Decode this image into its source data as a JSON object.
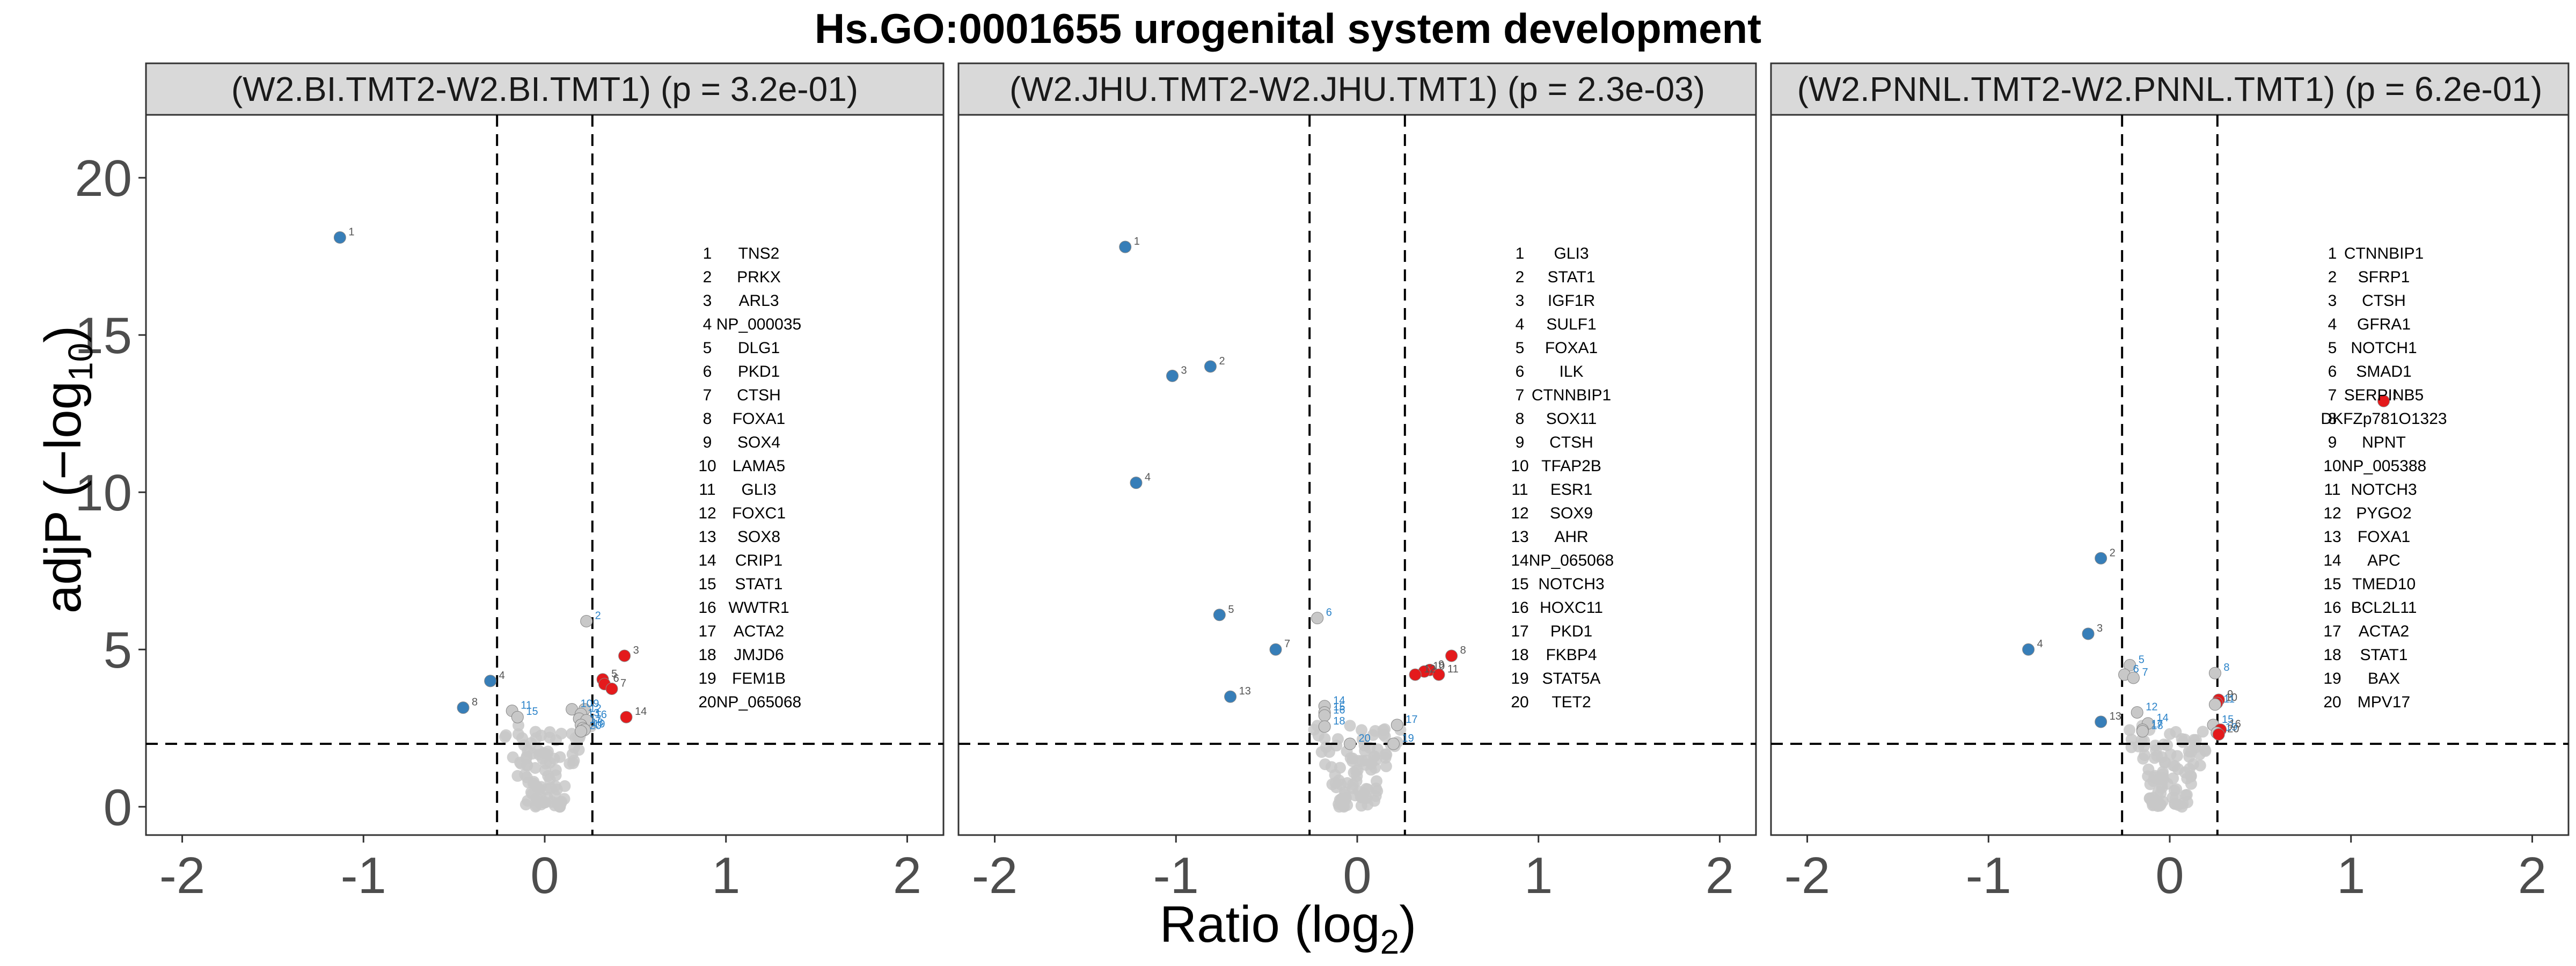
{
  "colors": {
    "up": "#E41A1C",
    "down": "#377EB8",
    "ns": "#C8C8C8",
    "strip_bg": "#D9D9D9"
  },
  "chart_data": {
    "type": "scatter",
    "title": "Hs.GO:0001655 urogenital system development",
    "xlabel": "Ratio (log2)",
    "ylabel": "adjP (−log10)",
    "xlim": [
      -2.2,
      2.2
    ],
    "ylim": [
      -0.9,
      22
    ],
    "x_ticks": [
      -2,
      -1,
      0,
      1,
      2
    ],
    "y_ticks": [
      0,
      5,
      10,
      15,
      20
    ],
    "ratio_cutoffs": [
      -0.263,
      0.263
    ],
    "p_cutoff": 2,
    "grid": false,
    "panels": [
      {
        "strip": "(W2.BI.TMT2-W2.BI.TMT1) (p = 3.2e-01)",
        "legend": [
          "TNS2",
          "PRKX",
          "ARL3",
          "NP_000035",
          "DLG1",
          "PKD1",
          "CTSH",
          "FOXA1",
          "SOX4",
          "LAMA5",
          "GLI3",
          "FOXC1",
          "SOX8",
          "CRIP1",
          "STAT1",
          "WWTR1",
          "ACTA2",
          "JMJD6",
          "FEM1B",
          "NP_065068"
        ],
        "points": [
          {
            "id": "1",
            "x": -1.13,
            "y": 18.1,
            "group": "down"
          },
          {
            "id": "2",
            "x": 0.23,
            "y": 5.9,
            "group": "ns"
          },
          {
            "id": "3",
            "x": 0.44,
            "y": 4.8,
            "group": "up"
          },
          {
            "id": "4",
            "x": -0.3,
            "y": 4.0,
            "group": "down"
          },
          {
            "id": "5",
            "x": 0.32,
            "y": 4.05,
            "group": "up"
          },
          {
            "id": "6",
            "x": 0.33,
            "y": 3.9,
            "group": "up"
          },
          {
            "id": "7",
            "x": 0.37,
            "y": 3.75,
            "group": "up"
          },
          {
            "id": "8",
            "x": -0.45,
            "y": 3.15,
            "group": "down"
          },
          {
            "id": "9",
            "x": 0.22,
            "y": 3.1,
            "group": "ns"
          },
          {
            "id": "10",
            "x": 0.15,
            "y": 3.1,
            "group": "ns"
          },
          {
            "id": "11",
            "x": -0.18,
            "y": 3.05,
            "group": "ns"
          },
          {
            "id": "12",
            "x": 0.2,
            "y": 2.95,
            "group": "ns"
          },
          {
            "id": "13",
            "x": 0.19,
            "y": 2.8,
            "group": "ns"
          },
          {
            "id": "14",
            "x": 0.45,
            "y": 2.85,
            "group": "up"
          },
          {
            "id": "15",
            "x": -0.15,
            "y": 2.85,
            "group": "ns"
          },
          {
            "id": "16",
            "x": 0.23,
            "y": 2.75,
            "group": "ns"
          },
          {
            "id": "17",
            "x": 0.2,
            "y": 2.6,
            "group": "ns"
          },
          {
            "id": "18",
            "x": 0.21,
            "y": 2.5,
            "group": "ns"
          },
          {
            "id": "19",
            "x": 0.22,
            "y": 2.45,
            "group": "ns"
          },
          {
            "id": "20",
            "x": 0.2,
            "y": 2.4,
            "group": "ns"
          }
        ]
      },
      {
        "strip": "(W2.JHU.TMT2-W2.JHU.TMT1) (p = 2.3e-03)",
        "legend": [
          "GLI3",
          "STAT1",
          "IGF1R",
          "SULF1",
          "FOXA1",
          "ILK",
          "CTNNBIP1",
          "SOX11",
          "CTSH",
          "TFAP2B",
          "ESR1",
          "SOX9",
          "AHR",
          "NP_065068",
          "NOTCH3",
          "HOXC11",
          "PKD1",
          "FKBP4",
          "STAT5A",
          "TET2"
        ],
        "points": [
          {
            "id": "1",
            "x": -1.28,
            "y": 17.8,
            "group": "down"
          },
          {
            "id": "2",
            "x": -0.81,
            "y": 14.0,
            "group": "down"
          },
          {
            "id": "3",
            "x": -1.02,
            "y": 13.7,
            "group": "down"
          },
          {
            "id": "4",
            "x": -1.22,
            "y": 10.3,
            "group": "down"
          },
          {
            "id": "5",
            "x": -0.76,
            "y": 6.1,
            "group": "down"
          },
          {
            "id": "6",
            "x": -0.22,
            "y": 6.0,
            "group": "ns"
          },
          {
            "id": "7",
            "x": -0.45,
            "y": 5.0,
            "group": "down"
          },
          {
            "id": "8",
            "x": 0.52,
            "y": 4.8,
            "group": "up"
          },
          {
            "id": "9",
            "x": 0.4,
            "y": 4.35,
            "group": "up"
          },
          {
            "id": "10",
            "x": 0.37,
            "y": 4.3,
            "group": "up"
          },
          {
            "id": "11",
            "x": 0.45,
            "y": 4.2,
            "group": "up"
          },
          {
            "id": "12",
            "x": 0.32,
            "y": 4.2,
            "group": "up"
          },
          {
            "id": "13",
            "x": -0.7,
            "y": 3.5,
            "group": "down"
          },
          {
            "id": "14",
            "x": -0.18,
            "y": 3.2,
            "group": "ns"
          },
          {
            "id": "15",
            "x": -0.18,
            "y": 3.0,
            "group": "ns"
          },
          {
            "id": "16",
            "x": -0.18,
            "y": 2.9,
            "group": "ns"
          },
          {
            "id": "17",
            "x": 0.22,
            "y": 2.6,
            "group": "ns"
          },
          {
            "id": "18",
            "x": -0.18,
            "y": 2.55,
            "group": "ns"
          },
          {
            "id": "19",
            "x": 0.2,
            "y": 2.0,
            "group": "ns"
          },
          {
            "id": "20",
            "x": -0.04,
            "y": 2.0,
            "group": "ns"
          }
        ]
      },
      {
        "strip": "(W2.PNNL.TMT2-W2.PNNL.TMT1) (p = 6.2e-01)",
        "legend": [
          "CTNNBIP1",
          "SFRP1",
          "CTSH",
          "GFRA1",
          "NOTCH1",
          "SMAD1",
          "SERPINB5",
          "DKFZp781O1323",
          "NPNT",
          "NP_005388",
          "NOTCH3",
          "PYGO2",
          "FOXA1",
          "APC",
          "TMED10",
          "BCL2L11",
          "ACTA2",
          "STAT1",
          "BAX",
          "MPV17"
        ],
        "points": [
          {
            "id": "1",
            "x": 1.18,
            "y": 12.9,
            "group": "up"
          },
          {
            "id": "2",
            "x": -0.38,
            "y": 7.9,
            "group": "down"
          },
          {
            "id": "3",
            "x": -0.45,
            "y": 5.5,
            "group": "down"
          },
          {
            "id": "4",
            "x": -0.78,
            "y": 5.0,
            "group": "down"
          },
          {
            "id": "5",
            "x": -0.22,
            "y": 4.5,
            "group": "ns"
          },
          {
            "id": "6",
            "x": -0.25,
            "y": 4.2,
            "group": "ns"
          },
          {
            "id": "7",
            "x": -0.2,
            "y": 4.1,
            "group": "ns"
          },
          {
            "id": "8",
            "x": 0.25,
            "y": 4.25,
            "group": "ns"
          },
          {
            "id": "9",
            "x": 0.27,
            "y": 3.4,
            "group": "up"
          },
          {
            "id": "10",
            "x": 0.26,
            "y": 3.3,
            "group": "up"
          },
          {
            "id": "11",
            "x": 0.25,
            "y": 3.25,
            "group": "ns"
          },
          {
            "id": "12",
            "x": -0.18,
            "y": 3.0,
            "group": "ns"
          },
          {
            "id": "13",
            "x": -0.38,
            "y": 2.7,
            "group": "down"
          },
          {
            "id": "14",
            "x": -0.12,
            "y": 2.65,
            "group": "ns"
          },
          {
            "id": "15",
            "x": 0.24,
            "y": 2.6,
            "group": "ns"
          },
          {
            "id": "16",
            "x": 0.28,
            "y": 2.45,
            "group": "up"
          },
          {
            "id": "17",
            "x": -0.15,
            "y": 2.45,
            "group": "ns"
          },
          {
            "id": "18",
            "x": -0.15,
            "y": 2.4,
            "group": "ns"
          },
          {
            "id": "19",
            "x": 0.26,
            "y": 2.35,
            "group": "ns"
          },
          {
            "id": "20",
            "x": 0.27,
            "y": 2.3,
            "group": "up"
          }
        ]
      }
    ]
  }
}
